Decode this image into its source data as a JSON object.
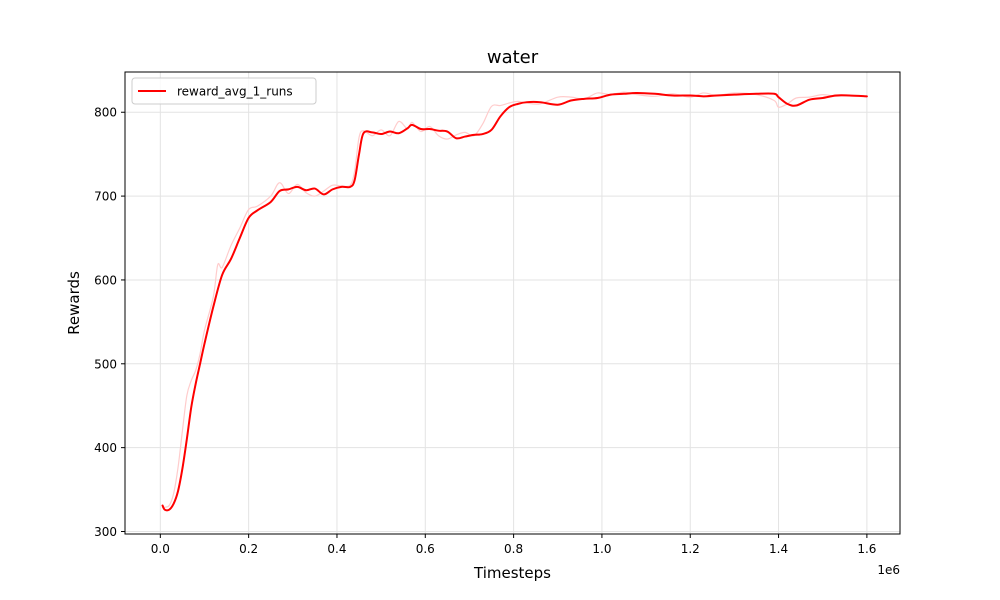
{
  "chart_data": {
    "type": "line",
    "title": "water",
    "xlabel": "Timesteps",
    "ylabel": "Rewards",
    "x_offset_label": "1e6",
    "xlim": [
      -0.08,
      1.675
    ],
    "ylim": [
      297,
      848
    ],
    "x_ticks": [
      0.0,
      0.2,
      0.4,
      0.6,
      0.8,
      1.0,
      1.2,
      1.4,
      1.6
    ],
    "x_tick_labels": [
      "0.0",
      "0.2",
      "0.4",
      "0.6",
      "0.8",
      "1.0",
      "1.2",
      "1.4",
      "1.6"
    ],
    "y_ticks": [
      300,
      400,
      500,
      600,
      700,
      800
    ],
    "y_tick_labels": [
      "300",
      "400",
      "500",
      "600",
      "700",
      "800"
    ],
    "grid": true,
    "legend_position": "top-left",
    "colors": {
      "line": "#ff0000",
      "raw": "#ffcccc",
      "grid": "#e3e3e3",
      "axis": "#000000"
    },
    "series": [
      {
        "name": "reward_avg_1_runs",
        "style": "smoothed",
        "x": [
          0.005,
          0.01,
          0.02,
          0.03,
          0.04,
          0.05,
          0.06,
          0.07,
          0.08,
          0.09,
          0.1,
          0.12,
          0.14,
          0.16,
          0.18,
          0.2,
          0.22,
          0.25,
          0.27,
          0.29,
          0.31,
          0.33,
          0.35,
          0.37,
          0.39,
          0.41,
          0.43,
          0.44,
          0.45,
          0.46,
          0.48,
          0.5,
          0.52,
          0.54,
          0.56,
          0.57,
          0.59,
          0.61,
          0.63,
          0.65,
          0.67,
          0.69,
          0.71,
          0.73,
          0.75,
          0.77,
          0.79,
          0.81,
          0.83,
          0.86,
          0.9,
          0.93,
          0.96,
          0.99,
          1.02,
          1.05,
          1.08,
          1.12,
          1.16,
          1.2,
          1.23,
          1.26,
          1.3,
          1.35,
          1.39,
          1.4,
          1.42,
          1.44,
          1.47,
          1.5,
          1.53,
          1.56,
          1.6
        ],
        "y": [
          331,
          326,
          326,
          333,
          348,
          375,
          410,
          448,
          476,
          500,
          524,
          568,
          606,
          625,
          650,
          674,
          683,
          693,
          706,
          708,
          711,
          707,
          709,
          702,
          708,
          711,
          711,
          719,
          750,
          775,
          776,
          774,
          777,
          775,
          781,
          785,
          780,
          780,
          778,
          777,
          769,
          771,
          773,
          774,
          779,
          795,
          806,
          810,
          812,
          812,
          809,
          814,
          816,
          817,
          821,
          822,
          823,
          822,
          820,
          820,
          819,
          820,
          821,
          822,
          822,
          818,
          810,
          808,
          815,
          817,
          820,
          820,
          819
        ]
      },
      {
        "name": "",
        "style": "raw",
        "x": [
          0.005,
          0.01,
          0.02,
          0.03,
          0.04,
          0.05,
          0.06,
          0.07,
          0.08,
          0.09,
          0.1,
          0.12,
          0.13,
          0.14,
          0.16,
          0.18,
          0.2,
          0.22,
          0.25,
          0.27,
          0.29,
          0.31,
          0.33,
          0.35,
          0.37,
          0.39,
          0.41,
          0.43,
          0.44,
          0.45,
          0.46,
          0.48,
          0.5,
          0.52,
          0.54,
          0.56,
          0.57,
          0.59,
          0.61,
          0.63,
          0.65,
          0.67,
          0.69,
          0.71,
          0.73,
          0.75,
          0.77,
          0.79,
          0.81,
          0.83,
          0.86,
          0.9,
          0.93,
          0.96,
          0.99,
          1.02,
          1.05,
          1.08,
          1.12,
          1.16,
          1.2,
          1.23,
          1.26,
          1.3,
          1.35,
          1.39,
          1.4,
          1.42,
          1.44,
          1.47,
          1.5,
          1.53,
          1.56,
          1.6
        ],
        "y": [
          329,
          329,
          331,
          345,
          376,
          420,
          462,
          480,
          492,
          512,
          540,
          580,
          618,
          615,
          641,
          662,
          684,
          688,
          700,
          716,
          703,
          714,
          704,
          700,
          706,
          713,
          712,
          713,
          730,
          770,
          778,
          772,
          779,
          772,
          789,
          780,
          788,
          777,
          783,
          772,
          768,
          773,
          776,
          772,
          786,
          807,
          808,
          811,
          813,
          811,
          810,
          818,
          818,
          816,
          823,
          821,
          824,
          821,
          819,
          822,
          818,
          823,
          820,
          823,
          821,
          814,
          806,
          810,
          817,
          818,
          821,
          819,
          820,
          819
        ]
      }
    ]
  }
}
